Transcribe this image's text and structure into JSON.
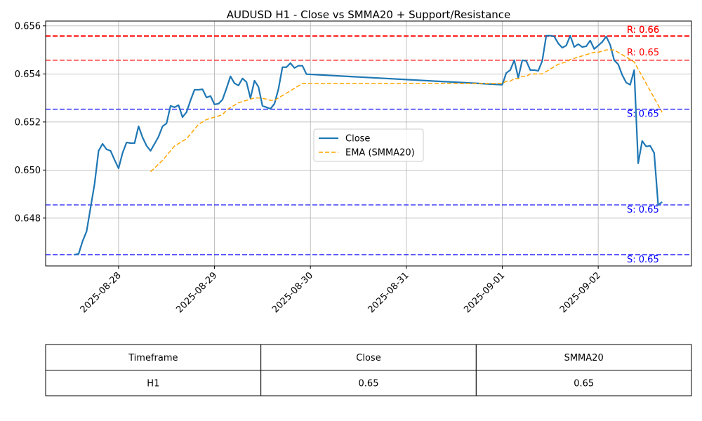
{
  "chart_data": {
    "type": "line",
    "title": "AUDUSD H1 - Close vs SMMA20 + Support/Resistance",
    "x": [
      "2025-08-27 13:00",
      "2025-08-27 14:00",
      "2025-08-27 15:00",
      "2025-08-27 16:00",
      "2025-08-27 17:00",
      "2025-08-27 18:00",
      "2025-08-27 19:00",
      "2025-08-27 20:00",
      "2025-08-27 21:00",
      "2025-08-27 22:00",
      "2025-08-27 23:00",
      "2025-08-28 00:00",
      "2025-08-28 01:00",
      "2025-08-28 02:00",
      "2025-08-28 03:00",
      "2025-08-28 04:00",
      "2025-08-28 05:00",
      "2025-08-28 06:00",
      "2025-08-28 07:00",
      "2025-08-28 08:00",
      "2025-08-28 09:00",
      "2025-08-28 10:00",
      "2025-08-28 11:00",
      "2025-08-28 12:00",
      "2025-08-28 13:00",
      "2025-08-28 14:00",
      "2025-08-28 15:00",
      "2025-08-28 16:00",
      "2025-08-28 17:00",
      "2025-08-28 18:00",
      "2025-08-28 19:00",
      "2025-08-28 20:00",
      "2025-08-28 21:00",
      "2025-08-28 22:00",
      "2025-08-28 23:00",
      "2025-08-29 00:00",
      "2025-08-29 01:00",
      "2025-08-29 02:00",
      "2025-08-29 03:00",
      "2025-08-29 04:00",
      "2025-08-29 05:00",
      "2025-08-29 06:00",
      "2025-08-29 07:00",
      "2025-08-29 08:00",
      "2025-08-29 09:00",
      "2025-08-29 10:00",
      "2025-08-29 11:00",
      "2025-08-29 12:00",
      "2025-08-29 13:00",
      "2025-08-29 14:00",
      "2025-08-29 15:00",
      "2025-08-29 16:00",
      "2025-08-29 17:00",
      "2025-08-29 18:00",
      "2025-08-29 19:00",
      "2025-08-29 20:00",
      "2025-08-29 21:00",
      "2025-08-29 22:00",
      "2025-08-29 23:00",
      "2025-09-01 00:00",
      "2025-09-01 01:00",
      "2025-09-01 02:00",
      "2025-09-01 03:00",
      "2025-09-01 04:00",
      "2025-09-01 05:00",
      "2025-09-01 06:00",
      "2025-09-01 07:00",
      "2025-09-01 08:00",
      "2025-09-01 09:00",
      "2025-09-01 10:00",
      "2025-09-01 11:00",
      "2025-09-01 12:00",
      "2025-09-01 13:00",
      "2025-09-01 14:00",
      "2025-09-01 15:00",
      "2025-09-01 16:00",
      "2025-09-01 17:00",
      "2025-09-01 18:00",
      "2025-09-01 19:00",
      "2025-09-01 20:00",
      "2025-09-01 21:00",
      "2025-09-01 22:00",
      "2025-09-01 23:00",
      "2025-09-02 00:00",
      "2025-09-02 01:00",
      "2025-09-02 02:00",
      "2025-09-02 03:00",
      "2025-09-02 04:00",
      "2025-09-02 05:00",
      "2025-09-02 06:00",
      "2025-09-02 07:00",
      "2025-09-02 08:00",
      "2025-09-02 09:00",
      "2025-09-02 10:00",
      "2025-09-02 11:00",
      "2025-09-02 12:00",
      "2025-09-02 13:00",
      "2025-09-02 14:00",
      "2025-09-02 15:00",
      "2025-09-02 16:00"
    ],
    "series": [
      {
        "name": "Close",
        "color": "#1f77b4",
        "dash": false,
        "values": [
          0.64648,
          0.64651,
          0.64704,
          0.64745,
          0.64844,
          0.64943,
          0.6508,
          0.65109,
          0.65086,
          0.6508,
          0.65042,
          0.65007,
          0.65071,
          0.65115,
          0.65112,
          0.65112,
          0.65182,
          0.65136,
          0.65101,
          0.6508,
          0.65109,
          0.65139,
          0.65182,
          0.65194,
          0.65267,
          0.65261,
          0.6527,
          0.6522,
          0.65241,
          0.6529,
          0.65334,
          0.65334,
          0.65336,
          0.65302,
          0.65308,
          0.65273,
          0.65276,
          0.65293,
          0.6534,
          0.6539,
          0.65361,
          0.65352,
          0.65381,
          0.65366,
          0.65299,
          0.65372,
          0.65346,
          0.65267,
          0.65261,
          0.65255,
          0.65276,
          0.65337,
          0.65428,
          0.65428,
          0.65445,
          0.65425,
          0.65434,
          0.65434,
          0.65399,
          0.65355,
          0.65404,
          0.65416,
          0.65457,
          0.65384,
          0.65457,
          0.65454,
          0.65416,
          0.65416,
          0.65413,
          0.65454,
          0.65559,
          0.65559,
          0.65556,
          0.65527,
          0.65509,
          0.65518,
          0.65559,
          0.65512,
          0.65524,
          0.65512,
          0.65515,
          0.65539,
          0.65504,
          0.65518,
          0.65533,
          0.65556,
          0.65521,
          0.65457,
          0.6544,
          0.65396,
          0.65364,
          0.65355,
          0.65416,
          0.65028,
          0.65121,
          0.65098,
          0.65101,
          0.65071,
          0.64855,
          0.64867
        ]
      },
      {
        "name": "EMA (SMMA20)",
        "color": "orange",
        "dash": true,
        "values": [
          null,
          null,
          null,
          null,
          null,
          null,
          null,
          null,
          null,
          null,
          null,
          null,
          null,
          null,
          null,
          null,
          null,
          null,
          null,
          0.64993,
          0.65008,
          0.65025,
          0.6504,
          0.6506,
          0.6508,
          0.651,
          0.6511,
          0.6512,
          0.6513,
          0.6515,
          0.6517,
          0.6519,
          0.652,
          0.6521,
          0.65215,
          0.6522,
          0.65225,
          0.6523,
          0.6525,
          0.6526,
          0.6527,
          0.6528,
          0.65285,
          0.6529,
          0.65295,
          0.653,
          0.653,
          0.65298,
          0.65295,
          0.6529,
          0.6529,
          0.653,
          0.6531,
          0.6532,
          0.6533,
          0.6534,
          0.6535,
          0.6536,
          0.6536,
          0.6536,
          0.6537,
          0.6537,
          0.6538,
          0.6538,
          0.6539,
          0.6539,
          0.654,
          0.654,
          0.654,
          0.654,
          0.6541,
          0.6542,
          0.6543,
          0.6544,
          0.65445,
          0.6545,
          0.6546,
          0.65465,
          0.6547,
          0.65475,
          0.6548,
          0.65485,
          0.6549,
          0.6549,
          0.65495,
          0.655,
          0.655,
          0.655,
          0.6549,
          0.6548,
          0.6547,
          0.6546,
          0.6545,
          0.6542,
          0.6539,
          0.6536,
          0.6533,
          0.653,
          0.6527,
          0.6524
        ]
      }
    ],
    "levels": [
      {
        "kind": "resistance",
        "value": 0.65559,
        "label": "R: 0.66",
        "color": "#ff0000"
      },
      {
        "kind": "resistance",
        "value": 0.65556,
        "label": "R: 0.66",
        "color": "#ff0000"
      },
      {
        "kind": "resistance",
        "value": 0.65457,
        "label": "R: 0.65",
        "color": "#ff0000"
      },
      {
        "kind": "support",
        "value": 0.65253,
        "label": "S: 0.65",
        "color": "#0000ff"
      },
      {
        "kind": "support",
        "value": 0.64855,
        "label": "S: 0.65",
        "color": "#0000ff"
      },
      {
        "kind": "support",
        "value": 0.64648,
        "label": "S: 0.65",
        "color": "#0000ff"
      }
    ],
    "xlim": [
      "2025-08-27 05:45",
      "2025-09-02 23:20"
    ],
    "xticks": [
      "2025-08-28",
      "2025-08-29",
      "2025-08-30",
      "2025-08-31",
      "2025-09-01",
      "2025-09-02"
    ],
    "ylim": [
      0.64601,
      0.6562
    ],
    "yticks": [
      0.648,
      {
        "value": 0.65,
        "label": "0.650"
      },
      0.652,
      0.654,
      0.656
    ],
    "grid": true,
    "legend": "center"
  },
  "table": {
    "columns": [
      "Timeframe",
      "Close",
      "SMMA20"
    ],
    "rows": [
      [
        "H1",
        0.65,
        0.65
      ]
    ]
  }
}
